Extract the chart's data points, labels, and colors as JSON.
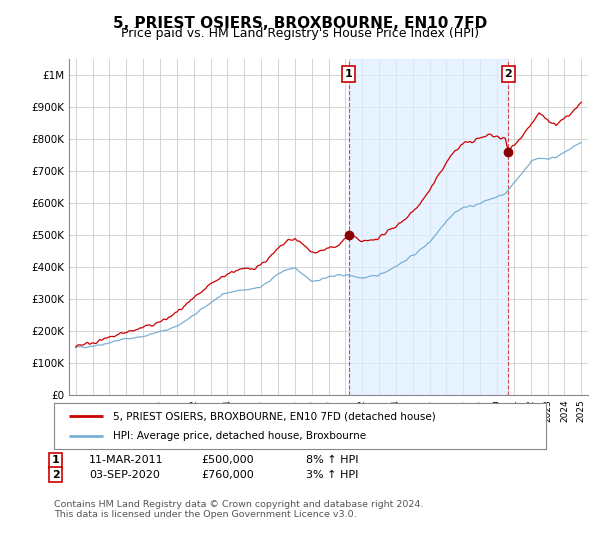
{
  "title": "5, PRIEST OSIERS, BROXBOURNE, EN10 7FD",
  "subtitle": "Price paid vs. HM Land Registry's House Price Index (HPI)",
  "title_fontsize": 11,
  "subtitle_fontsize": 9,
  "ylabel_ticks": [
    "£0",
    "£100K",
    "£200K",
    "£300K",
    "£400K",
    "£500K",
    "£600K",
    "£700K",
    "£800K",
    "£900K",
    "£1M"
  ],
  "ytick_values": [
    0,
    100000,
    200000,
    300000,
    400000,
    500000,
    600000,
    700000,
    800000,
    900000,
    1000000
  ],
  "ylim": [
    0,
    1050000
  ],
  "legend_line1": "5, PRIEST OSIERS, BROXBOURNE, EN10 7FD (detached house)",
  "legend_line2": "HPI: Average price, detached house, Broxbourne",
  "footer": "Contains HM Land Registry data © Crown copyright and database right 2024.\nThis data is licensed under the Open Government Licence v3.0.",
  "line_color_red": "#cc0000",
  "line_color_blue": "#7ab0d4",
  "shade_color": "#ddeeff",
  "background_color": "#ffffff",
  "grid_color": "#cccccc",
  "annotation_box_color": "#cc0000",
  "sale1_year": 2011.19,
  "sale1_price": 500000,
  "sale2_year": 2020.67,
  "sale2_price": 760000,
  "hpi_points": [
    [
      1995.0,
      148000
    ],
    [
      1995.5,
      150000
    ],
    [
      1996.0,
      153000
    ],
    [
      1996.5,
      157000
    ],
    [
      1997.0,
      163000
    ],
    [
      1997.5,
      170000
    ],
    [
      1998.0,
      175000
    ],
    [
      1998.5,
      178000
    ],
    [
      1999.0,
      183000
    ],
    [
      1999.5,
      190000
    ],
    [
      2000.0,
      197000
    ],
    [
      2000.5,
      205000
    ],
    [
      2001.0,
      215000
    ],
    [
      2001.5,
      230000
    ],
    [
      2002.0,
      248000
    ],
    [
      2002.5,
      268000
    ],
    [
      2003.0,
      288000
    ],
    [
      2003.5,
      305000
    ],
    [
      2004.0,
      318000
    ],
    [
      2004.5,
      325000
    ],
    [
      2005.0,
      328000
    ],
    [
      2005.5,
      330000
    ],
    [
      2006.0,
      340000
    ],
    [
      2006.5,
      355000
    ],
    [
      2007.0,
      378000
    ],
    [
      2007.5,
      390000
    ],
    [
      2008.0,
      395000
    ],
    [
      2008.5,
      375000
    ],
    [
      2009.0,
      355000
    ],
    [
      2009.5,
      360000
    ],
    [
      2010.0,
      368000
    ],
    [
      2010.5,
      372000
    ],
    [
      2011.0,
      375000
    ],
    [
      2011.5,
      370000
    ],
    [
      2012.0,
      365000
    ],
    [
      2012.5,
      368000
    ],
    [
      2013.0,
      375000
    ],
    [
      2013.5,
      388000
    ],
    [
      2014.0,
      402000
    ],
    [
      2014.5,
      418000
    ],
    [
      2015.0,
      435000
    ],
    [
      2015.5,
      455000
    ],
    [
      2016.0,
      478000
    ],
    [
      2016.5,
      510000
    ],
    [
      2017.0,
      545000
    ],
    [
      2017.5,
      570000
    ],
    [
      2018.0,
      585000
    ],
    [
      2018.5,
      590000
    ],
    [
      2019.0,
      598000
    ],
    [
      2019.5,
      610000
    ],
    [
      2020.0,
      618000
    ],
    [
      2020.5,
      628000
    ],
    [
      2021.0,
      660000
    ],
    [
      2021.5,
      695000
    ],
    [
      2022.0,
      728000
    ],
    [
      2022.5,
      740000
    ],
    [
      2023.0,
      738000
    ],
    [
      2023.5,
      742000
    ],
    [
      2024.0,
      758000
    ],
    [
      2024.5,
      775000
    ],
    [
      2025.0,
      788000
    ]
  ],
  "red_points": [
    [
      1995.0,
      155000
    ],
    [
      1995.5,
      158000
    ],
    [
      1996.0,
      163000
    ],
    [
      1996.5,
      170000
    ],
    [
      1997.0,
      178000
    ],
    [
      1997.5,
      188000
    ],
    [
      1998.0,
      196000
    ],
    [
      1998.5,
      202000
    ],
    [
      1999.0,
      210000
    ],
    [
      1999.5,
      218000
    ],
    [
      2000.0,
      228000
    ],
    [
      2000.5,
      240000
    ],
    [
      2001.0,
      258000
    ],
    [
      2001.5,
      278000
    ],
    [
      2002.0,
      300000
    ],
    [
      2002.5,
      322000
    ],
    [
      2003.0,
      345000
    ],
    [
      2003.5,
      362000
    ],
    [
      2004.0,
      378000
    ],
    [
      2004.5,
      388000
    ],
    [
      2005.0,
      392000
    ],
    [
      2005.5,
      395000
    ],
    [
      2006.0,
      408000
    ],
    [
      2006.5,
      428000
    ],
    [
      2007.0,
      455000
    ],
    [
      2007.5,
      478000
    ],
    [
      2008.0,
      488000
    ],
    [
      2008.5,
      468000
    ],
    [
      2009.0,
      445000
    ],
    [
      2009.5,
      450000
    ],
    [
      2010.0,
      458000
    ],
    [
      2010.5,
      462000
    ],
    [
      2011.19,
      500000
    ],
    [
      2011.5,
      492000
    ],
    [
      2012.0,
      478000
    ],
    [
      2012.5,
      482000
    ],
    [
      2013.0,
      492000
    ],
    [
      2013.5,
      508000
    ],
    [
      2014.0,
      528000
    ],
    [
      2014.5,
      548000
    ],
    [
      2015.0,
      572000
    ],
    [
      2015.5,
      602000
    ],
    [
      2016.0,
      638000
    ],
    [
      2016.5,
      682000
    ],
    [
      2017.0,
      728000
    ],
    [
      2017.5,
      762000
    ],
    [
      2018.0,
      785000
    ],
    [
      2018.5,
      792000
    ],
    [
      2019.0,
      802000
    ],
    [
      2019.5,
      812000
    ],
    [
      2020.0,
      808000
    ],
    [
      2020.5,
      798000
    ],
    [
      2020.67,
      760000
    ],
    [
      2021.0,
      782000
    ],
    [
      2021.5,
      810000
    ],
    [
      2022.0,
      845000
    ],
    [
      2022.5,
      878000
    ],
    [
      2023.0,
      858000
    ],
    [
      2023.5,
      842000
    ],
    [
      2024.0,
      862000
    ],
    [
      2024.5,
      885000
    ],
    [
      2025.0,
      910000
    ]
  ]
}
